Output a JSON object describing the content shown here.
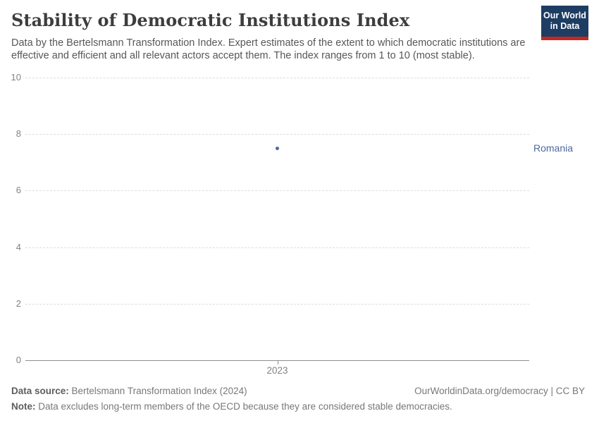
{
  "header": {
    "title": "Stability of Democratic Institutions Index",
    "subtitle": "Data by the Bertelsmann Transformation Index. Expert estimates of the extent to which democratic institutions are effective and efficient and all relevant actors accept them. The index ranges from 1 to 10 (most stable).",
    "logo_line1": "Our World",
    "logo_line2": "in Data"
  },
  "chart_data": {
    "type": "scatter",
    "title": "Stability of Democratic Institutions Index",
    "x": [
      2023
    ],
    "xticks": [
      "2023"
    ],
    "series": [
      {
        "name": "Romania",
        "values": [
          7.5
        ]
      }
    ],
    "categories": [
      "2023"
    ],
    "ylim": [
      0,
      10
    ],
    "yticks": [
      0,
      2,
      4,
      6,
      8,
      10
    ],
    "xlabel": "",
    "ylabel": "",
    "grid": true,
    "legend_position": "right-entity-label",
    "point_color": "#4c6a9c",
    "label_color": "#4c6a9c",
    "gridline_color": "#dcdcdc",
    "axis_color": "#8f8f8f",
    "tick_text_color": "#838383"
  },
  "footer": {
    "source_label": "Data source:",
    "source_text": " Bertelsmann Transformation Index (2024)",
    "link_text": "OurWorldinData.org/democracy | CC BY",
    "note_label": "Note:",
    "note_text": " Data excludes long-term members of the OECD because they are considered stable democracies."
  }
}
